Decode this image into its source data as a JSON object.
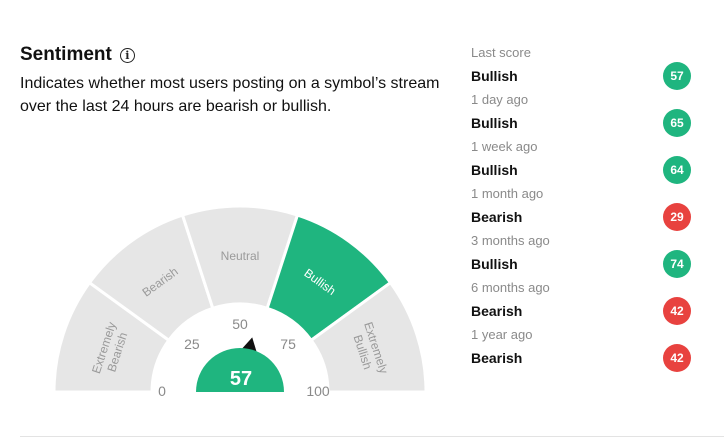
{
  "sentiment": {
    "title": "Sentiment",
    "info_icon": "info-icon",
    "description": "Indicates whether most users posting on a symbol’s stream over the last 24 hours are bearish or bullish."
  },
  "gauge": {
    "score": 57,
    "active_segment": "Bullish",
    "segments": [
      {
        "label": "Extremely Bearish",
        "lines": [
          "Extremely",
          "Bearish"
        ]
      },
      {
        "label": "Bearish",
        "lines": [
          "Bearish"
        ]
      },
      {
        "label": "Neutral",
        "lines": [
          "Neutral"
        ]
      },
      {
        "label": "Bullish",
        "lines": [
          "Bullish"
        ]
      },
      {
        "label": "Extremely Bullish",
        "lines": [
          "Extremely",
          "Bullish"
        ]
      }
    ],
    "ticks": [
      "0",
      "25",
      "50",
      "75",
      "100"
    ],
    "colors": {
      "active": "#1fb57f",
      "inactive": "#e6e6e6",
      "inactive_text": "#9a9a9a",
      "needle": "#111111"
    }
  },
  "history": [
    {
      "period": "Last score",
      "label": "Bullish",
      "score": "57",
      "color": "#1fb57f"
    },
    {
      "period": "1 day ago",
      "label": "Bullish",
      "score": "65",
      "color": "#1fb57f"
    },
    {
      "period": "1 week ago",
      "label": "Bullish",
      "score": "64",
      "color": "#1fb57f"
    },
    {
      "period": "1 month ago",
      "label": "Bearish",
      "score": "29",
      "color": "#e8423f"
    },
    {
      "period": "3 months ago",
      "label": "Bullish",
      "score": "74",
      "color": "#1fb57f"
    },
    {
      "period": "6 months ago",
      "label": "Bearish",
      "score": "42",
      "color": "#e8423f"
    },
    {
      "period": "1 year ago",
      "label": "Bearish",
      "score": "42",
      "color": "#e8423f"
    }
  ]
}
